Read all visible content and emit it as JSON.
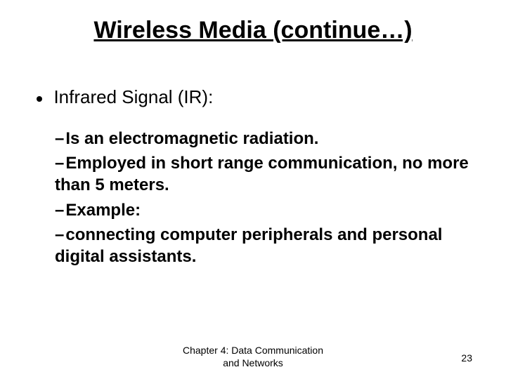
{
  "title": {
    "text": "Wireless Media (continue…)",
    "fontsize": 34
  },
  "bullet1": {
    "text": "Infrared Signal (IR):",
    "fontsize": 26
  },
  "sub": {
    "fontsize": 24,
    "items": [
      "Is an electromagnetic radiation.",
      "Employed in short range communication, no more than 5 meters.",
      "Example:",
      "connecting computer peripherals and personal digital assistants."
    ]
  },
  "footer": {
    "line1": "Chapter 4: Data Communication",
    "line2": "and Networks"
  },
  "pagenum": "23",
  "colors": {
    "bg": "#ffffff",
    "text": "#000000"
  }
}
